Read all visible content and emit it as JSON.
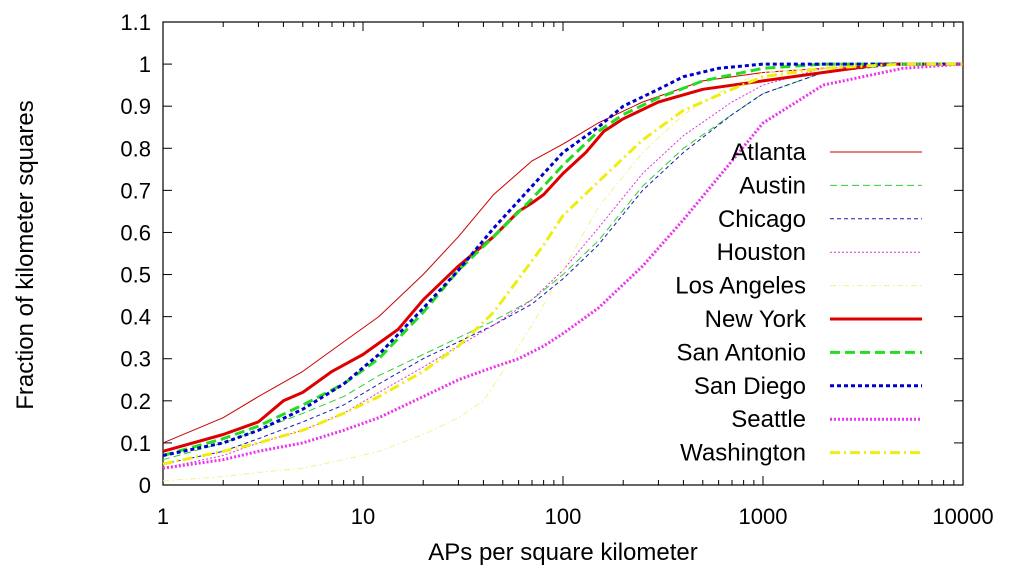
{
  "chart_data": {
    "type": "line",
    "title": "",
    "xlabel": "APs per square kilometer",
    "ylabel": "Fraction of kilometer squares",
    "x_scale": "log",
    "xlim": [
      1,
      10000
    ],
    "ylim": [
      0,
      1.1
    ],
    "xticks": [
      1,
      10,
      100,
      1000,
      10000
    ],
    "xtick_labels": [
      "1",
      "10",
      "100",
      "1000",
      "10000"
    ],
    "yticks": [
      0,
      0.1,
      0.2,
      0.3,
      0.4,
      0.5,
      0.6,
      0.7,
      0.8,
      0.9,
      1,
      1.1
    ],
    "ytick_labels": [
      "0",
      "0.1",
      "0.2",
      "0.3",
      "0.4",
      "0.5",
      "0.6",
      "0.7",
      "0.8",
      "0.9",
      "1",
      "1.1"
    ],
    "grid": false,
    "legend_position": "right",
    "series": [
      {
        "name": "Atlanta",
        "color": "#cc0000",
        "width": 1,
        "dash": "",
        "x": [
          1,
          2,
          3,
          5,
          8,
          12,
          20,
          30,
          45,
          70,
          100,
          150,
          250,
          500,
          1000,
          2000,
          5000,
          10000
        ],
        "y": [
          0.1,
          0.16,
          0.21,
          0.27,
          0.34,
          0.4,
          0.5,
          0.59,
          0.69,
          0.77,
          0.81,
          0.86,
          0.91,
          0.96,
          0.98,
          0.99,
          1.0,
          1.0
        ]
      },
      {
        "name": "Austin",
        "color": "#33cc33",
        "width": 1,
        "dash": "7,4",
        "x": [
          1,
          2,
          3,
          5,
          8,
          12,
          20,
          30,
          45,
          70,
          100,
          150,
          250,
          400,
          700,
          1000,
          2000,
          5000,
          10000
        ],
        "y": [
          0.06,
          0.1,
          0.13,
          0.17,
          0.21,
          0.26,
          0.31,
          0.35,
          0.39,
          0.44,
          0.5,
          0.58,
          0.71,
          0.8,
          0.88,
          0.93,
          0.98,
          1.0,
          1.0
        ]
      },
      {
        "name": "Chicago",
        "color": "#1a1ab3",
        "width": 1,
        "dash": "4,3",
        "x": [
          1,
          2,
          3,
          5,
          8,
          12,
          20,
          30,
          45,
          70,
          100,
          150,
          250,
          400,
          700,
          1000,
          2000,
          5000,
          10000
        ],
        "y": [
          0.05,
          0.08,
          0.11,
          0.15,
          0.19,
          0.24,
          0.3,
          0.34,
          0.38,
          0.43,
          0.49,
          0.57,
          0.7,
          0.79,
          0.88,
          0.93,
          0.98,
          1.0,
          1.0
        ]
      },
      {
        "name": "Houston",
        "color": "#dd33dd",
        "width": 1,
        "dash": "2,2",
        "x": [
          1,
          2,
          3,
          5,
          8,
          12,
          20,
          30,
          45,
          70,
          100,
          150,
          250,
          400,
          700,
          1000,
          2000,
          5000,
          10000
        ],
        "y": [
          0.04,
          0.07,
          0.1,
          0.13,
          0.17,
          0.22,
          0.28,
          0.33,
          0.38,
          0.44,
          0.51,
          0.61,
          0.74,
          0.83,
          0.91,
          0.95,
          0.99,
          1.0,
          1.0
        ]
      },
      {
        "name": "Los Angeles",
        "color": "#f2f28c",
        "width": 1,
        "dash": "6,3,1.5,3",
        "x": [
          1,
          2,
          3,
          5,
          8,
          12,
          20,
          30,
          40,
          50,
          70,
          100,
          150,
          250,
          400,
          700,
          1000,
          2000,
          5000,
          10000
        ],
        "y": [
          0.01,
          0.02,
          0.03,
          0.04,
          0.06,
          0.08,
          0.12,
          0.16,
          0.2,
          0.27,
          0.38,
          0.51,
          0.66,
          0.79,
          0.88,
          0.95,
          0.98,
          0.99,
          1.0,
          1.0
        ]
      },
      {
        "name": "New York",
        "color": "#dd0000",
        "width": 3,
        "dash": "",
        "x": [
          1,
          2,
          3,
          4,
          5,
          7,
          10,
          15,
          20,
          30,
          45,
          60,
          70,
          80,
          100,
          130,
          160,
          200,
          300,
          500,
          1000,
          2000,
          4000,
          10000
        ],
        "y": [
          0.08,
          0.12,
          0.15,
          0.2,
          0.22,
          0.27,
          0.31,
          0.37,
          0.44,
          0.52,
          0.59,
          0.65,
          0.67,
          0.69,
          0.74,
          0.79,
          0.84,
          0.87,
          0.91,
          0.94,
          0.96,
          0.98,
          1.0,
          1.0
        ]
      },
      {
        "name": "San Antonio",
        "color": "#22dd22",
        "width": 3,
        "dash": "10,5",
        "x": [
          1,
          2,
          3,
          5,
          8,
          12,
          20,
          30,
          45,
          70,
          100,
          150,
          200,
          300,
          500,
          1000,
          2000,
          5000,
          10000
        ],
        "y": [
          0.07,
          0.11,
          0.14,
          0.19,
          0.24,
          0.3,
          0.41,
          0.51,
          0.59,
          0.68,
          0.76,
          0.84,
          0.88,
          0.92,
          0.96,
          0.99,
          1.0,
          1.0,
          1.0
        ]
      },
      {
        "name": "San Diego",
        "color": "#0000cc",
        "width": 3,
        "dash": "4,3",
        "x": [
          1,
          2,
          3,
          5,
          8,
          12,
          20,
          30,
          45,
          70,
          100,
          150,
          200,
          300,
          400,
          600,
          1000,
          2000,
          10000
        ],
        "y": [
          0.07,
          0.1,
          0.13,
          0.18,
          0.24,
          0.31,
          0.42,
          0.51,
          0.61,
          0.71,
          0.79,
          0.85,
          0.9,
          0.94,
          0.97,
          0.99,
          1.0,
          1.0,
          1.0
        ]
      },
      {
        "name": "Seattle",
        "color": "#ee33ee",
        "width": 3,
        "dash": "2,2",
        "x": [
          1,
          2,
          3,
          5,
          8,
          12,
          20,
          30,
          45,
          60,
          80,
          100,
          150,
          250,
          400,
          700,
          1000,
          2000,
          5000,
          10000
        ],
        "y": [
          0.04,
          0.06,
          0.08,
          0.1,
          0.13,
          0.16,
          0.21,
          0.25,
          0.28,
          0.3,
          0.33,
          0.36,
          0.42,
          0.52,
          0.63,
          0.77,
          0.86,
          0.95,
          0.99,
          1.0
        ]
      },
      {
        "name": "Washington",
        "color": "#eeee11",
        "width": 3,
        "dash": "10,4,2,4",
        "x": [
          1,
          2,
          3,
          5,
          8,
          12,
          20,
          30,
          45,
          60,
          80,
          100,
          150,
          250,
          400,
          700,
          1000,
          2000,
          5000,
          10000
        ],
        "y": [
          0.05,
          0.08,
          0.1,
          0.13,
          0.17,
          0.21,
          0.27,
          0.33,
          0.41,
          0.49,
          0.57,
          0.64,
          0.72,
          0.82,
          0.89,
          0.94,
          0.97,
          0.99,
          1.0,
          1.0
        ]
      }
    ]
  }
}
